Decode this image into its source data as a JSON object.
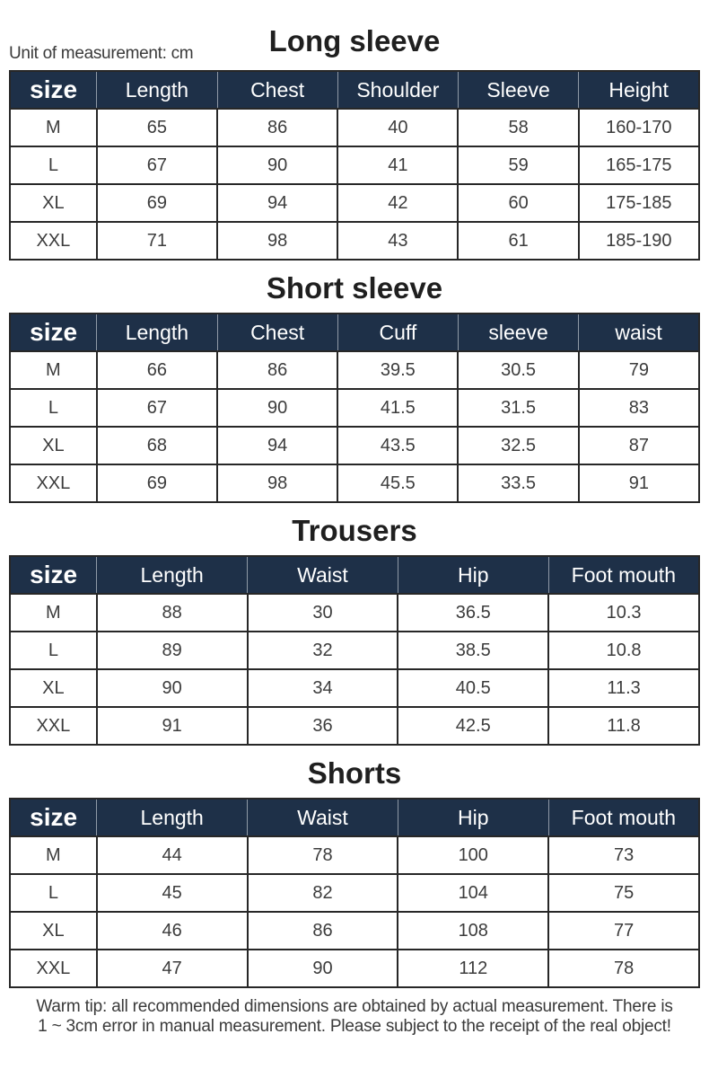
{
  "unit_note": "Unit of measurement: cm",
  "footer_note": "Warm tip: all recommended dimensions are obtained by actual measurement. There is 1 ~ 3cm error in manual measurement. Please subject to the receipt of the real object!",
  "colors": {
    "header_bg": "#1e3048",
    "header_text": "#ffffff",
    "grid": "#272727",
    "cell_text": "#3c3c3c",
    "title_text": "#1f1f1f",
    "note_text": "#3a3a3a"
  },
  "chart_data": [
    {
      "type": "table",
      "title": "Long sleeve",
      "columns": [
        "size",
        "Length",
        "Chest",
        "Shoulder",
        "Sleeve",
        "Height"
      ],
      "rows": [
        [
          "M",
          "65",
          "86",
          "40",
          "58",
          "160-170"
        ],
        [
          "L",
          "67",
          "90",
          "41",
          "59",
          "165-175"
        ],
        [
          "XL",
          "69",
          "94",
          "42",
          "60",
          "175-185"
        ],
        [
          "XXL",
          "71",
          "98",
          "43",
          "61",
          "185-190"
        ]
      ]
    },
    {
      "type": "table",
      "title": "Short sleeve",
      "columns": [
        "size",
        "Length",
        "Chest",
        "Cuff",
        "sleeve",
        "waist"
      ],
      "rows": [
        [
          "M",
          "66",
          "86",
          "39.5",
          "30.5",
          "79"
        ],
        [
          "L",
          "67",
          "90",
          "41.5",
          "31.5",
          "83"
        ],
        [
          "XL",
          "68",
          "94",
          "43.5",
          "32.5",
          "87"
        ],
        [
          "XXL",
          "69",
          "98",
          "45.5",
          "33.5",
          "91"
        ]
      ]
    },
    {
      "type": "table",
      "title": "Trousers",
      "columns": [
        "size",
        "Length",
        "Waist",
        "Hip",
        "Foot mouth"
      ],
      "rows": [
        [
          "M",
          "88",
          "30",
          "36.5",
          "10.3"
        ],
        [
          "L",
          "89",
          "32",
          "38.5",
          "10.8"
        ],
        [
          "XL",
          "90",
          "34",
          "40.5",
          "11.3"
        ],
        [
          "XXL",
          "91",
          "36",
          "42.5",
          "11.8"
        ]
      ]
    },
    {
      "type": "table",
      "title": "Shorts",
      "columns": [
        "size",
        "Length",
        "Waist",
        "Hip",
        "Foot mouth"
      ],
      "rows": [
        [
          "M",
          "44",
          "78",
          "100",
          "73"
        ],
        [
          "L",
          "45",
          "82",
          "104",
          "75"
        ],
        [
          "XL",
          "46",
          "86",
          "108",
          "77"
        ],
        [
          "XXL",
          "47",
          "90",
          "112",
          "78"
        ]
      ]
    }
  ]
}
